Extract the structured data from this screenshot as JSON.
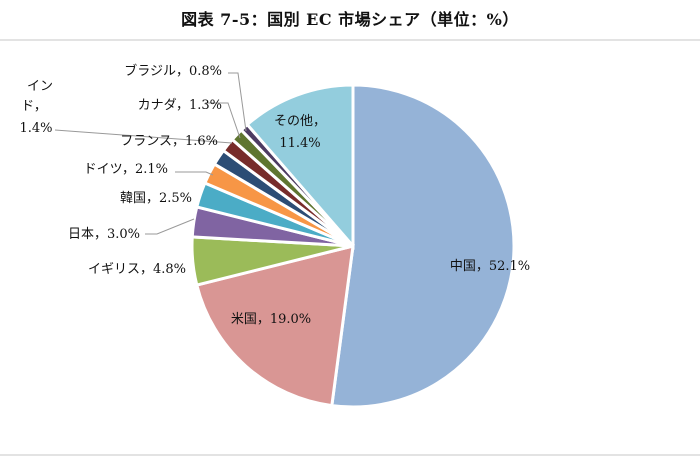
{
  "title": "図表 7-5：国別 EC 市場シェア（単位：%）",
  "chart_data": {
    "type": "pie",
    "title": "図表 7-5：国別 EC 市場シェア（単位：%）",
    "unit": "%",
    "start_angle_deg": 0,
    "direction": "clockwise",
    "categories": [
      "中国",
      "米国",
      "イギリス",
      "日本",
      "韓国",
      "ドイツ",
      "フランス",
      "インド",
      "カナダ",
      "ブラジル",
      "その他"
    ],
    "values": [
      52.1,
      19.0,
      4.8,
      3.0,
      2.5,
      2.1,
      1.6,
      1.4,
      1.3,
      0.8,
      11.4
    ],
    "colors": [
      "#95b3d7",
      "#d99694",
      "#9bbb59",
      "#8064a2",
      "#4bacc6",
      "#f79646",
      "#2c4d75",
      "#772c2a",
      "#5f7530",
      "#4d3b62",
      "#93cddd"
    ],
    "labels": [
      "中国，52.1%",
      "米国，19.0%",
      "イギリス，4.8%",
      "日本，3.0%",
      "韓国，2.5%",
      "ドイツ，2.1%",
      "フランス，1.6%",
      "インド，1.4%",
      "カナダ，1.3%",
      "ブラジル，0.8%",
      "その他，11.4%"
    ],
    "legend": "none"
  }
}
